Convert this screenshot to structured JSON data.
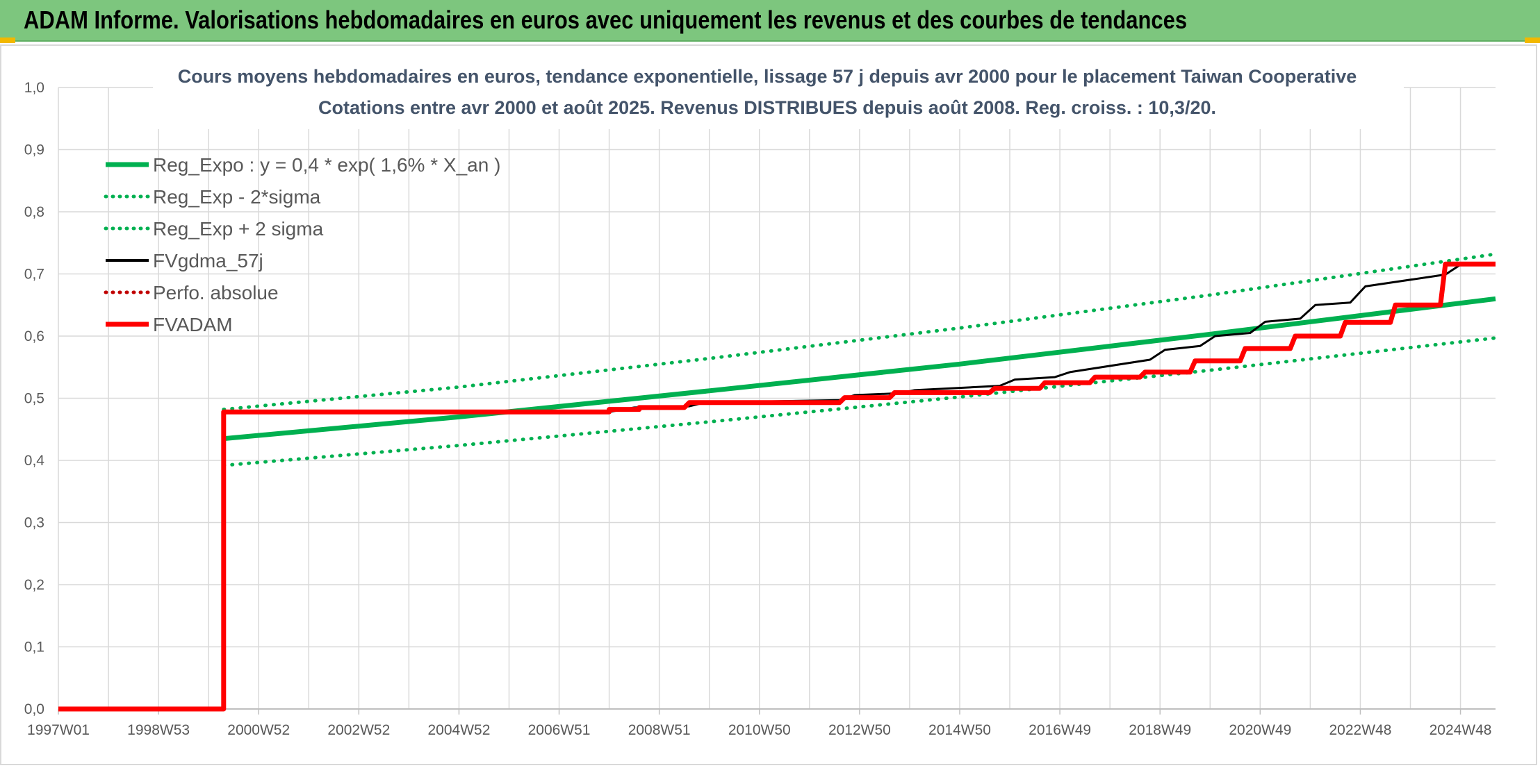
{
  "header": {
    "title": "ADAM Informe. Valorisations hebdomadaires en euros avec uniquement les revenus et des courbes de tendances"
  },
  "colors": {
    "banner": "#7dc67e",
    "trend": "#00b050",
    "fvadam": "#ff0000",
    "fvgdma": "#000000",
    "grid": "#d9d9d9"
  },
  "chart_data": {
    "type": "line",
    "title": [
      "Cours moyens hebdomadaires en euros, tendance exponentielle, lissage 57 j depuis avr 2000 pour le placement Taiwan Cooperative",
      "Cotations entre avr 2000 et août 2025. Revenus DISTRIBUES depuis août 2008. Reg. croiss. : 10,3/20."
    ],
    "x_tick_labels": [
      "1997W01",
      "1998W53",
      "2000W52",
      "2002W52",
      "2004W52",
      "2006W51",
      "2008W51",
      "2010W50",
      "2012W50",
      "2014W50",
      "2016W49",
      "2018W49",
      "2020W49",
      "2022W48",
      "2024W48"
    ],
    "x_range": [
      1997.0,
      2025.7
    ],
    "ylim": [
      0,
      1.0
    ],
    "y_ticks": [
      "0,0",
      "0,1",
      "0,2",
      "0,3",
      "0,4",
      "0,5",
      "0,6",
      "0,7",
      "0,8",
      "0,9",
      "1,0"
    ],
    "grid": true,
    "legend_position": "top-left",
    "series": [
      {
        "name": "Reg_Expo : y = 0,4 * exp( 1,6% *  X_an )",
        "style": "solid",
        "color": "#00b050",
        "x": [
          2000.3,
          2005.0,
          2010.0,
          2015.0,
          2020.0,
          2025.7
        ],
        "y": [
          0.435,
          0.47,
          0.512,
          0.555,
          0.603,
          0.66
        ]
      },
      {
        "name": "Reg_Exp - 2*sigma",
        "style": "dotted",
        "color": "#00b050",
        "x": [
          2000.3,
          2005.0,
          2010.0,
          2015.0,
          2020.0,
          2025.7
        ],
        "y": [
          0.392,
          0.424,
          0.462,
          0.502,
          0.545,
          0.597
        ]
      },
      {
        "name": "Reg_Exp + 2 sigma",
        "style": "dotted",
        "color": "#00b050",
        "x": [
          2000.3,
          2005.0,
          2010.0,
          2015.0,
          2020.0,
          2025.7
        ],
        "y": [
          0.482,
          0.518,
          0.564,
          0.613,
          0.666,
          0.732
        ]
      },
      {
        "name": "FVgdma_57j",
        "style": "solid",
        "color": "#000000",
        "x": [
          1997.0,
          2000.3,
          2000.3,
          2008.0,
          2008.5,
          2009.6,
          2009.9,
          2012.6,
          2012.9,
          2013.8,
          2014.1,
          2015.8,
          2016.1,
          2016.9,
          2017.2,
          2018.8,
          2019.1,
          2019.8,
          2020.1,
          2020.8,
          2021.1,
          2021.8,
          2022.1,
          2022.8,
          2023.1,
          2024.7,
          2025.0,
          2025.7
        ],
        "y": [
          0.0,
          0.0,
          0.478,
          0.478,
          0.485,
          0.487,
          0.493,
          0.497,
          0.505,
          0.508,
          0.513,
          0.52,
          0.53,
          0.534,
          0.542,
          0.562,
          0.578,
          0.584,
          0.6,
          0.605,
          0.623,
          0.628,
          0.65,
          0.654,
          0.68,
          0.699,
          0.715,
          0.715
        ]
      },
      {
        "name": "Perfo. absolue",
        "style": "dotted",
        "color": "#c00000",
        "x": [],
        "y": []
      },
      {
        "name": "FVADAM",
        "style": "solid",
        "color": "#ff0000",
        "x": [
          1997.0,
          2000.3,
          2000.3,
          2008.0,
          2008.0,
          2008.6,
          2008.6,
          2009.5,
          2009.6,
          2012.6,
          2012.7,
          2013.6,
          2013.7,
          2015.6,
          2015.7,
          2016.6,
          2016.7,
          2017.6,
          2017.7,
          2018.6,
          2018.7,
          2019.6,
          2019.7,
          2020.6,
          2020.7,
          2021.6,
          2021.7,
          2022.6,
          2022.7,
          2023.6,
          2023.7,
          2024.6,
          2024.7,
          2025.7
        ],
        "y": [
          0.0,
          0.0,
          0.478,
          0.478,
          0.482,
          0.482,
          0.485,
          0.485,
          0.493,
          0.493,
          0.501,
          0.501,
          0.509,
          0.509,
          0.516,
          0.516,
          0.525,
          0.525,
          0.534,
          0.534,
          0.542,
          0.542,
          0.56,
          0.56,
          0.58,
          0.58,
          0.6,
          0.6,
          0.622,
          0.622,
          0.65,
          0.65,
          0.716,
          0.716
        ]
      }
    ]
  }
}
